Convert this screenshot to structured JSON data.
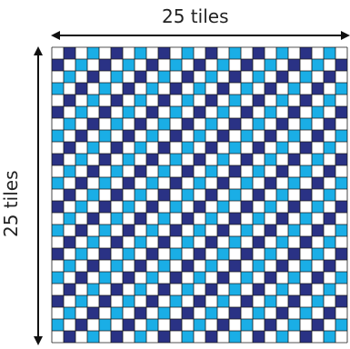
{
  "diagram": {
    "width_label": "25 tiles",
    "height_label": "25 tiles",
    "grid": {
      "columns": 25,
      "rows": 25
    },
    "colors": {
      "dark_blue": "#2a3285",
      "light_blue": "#1aaee6",
      "white": "#ffffff",
      "grid_line": "#1a1a1a",
      "arrow": "#111111"
    }
  }
}
